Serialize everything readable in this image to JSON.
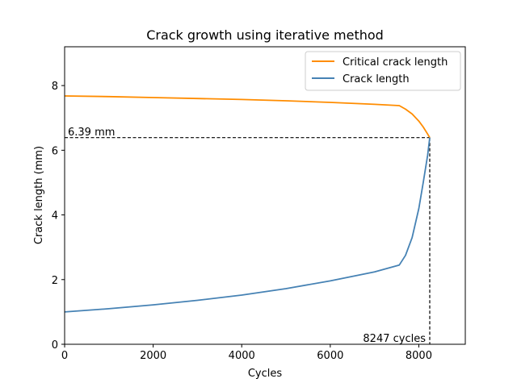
{
  "chart_data": {
    "type": "line",
    "title": "Crack growth using iterative method",
    "xlabel": "Cycles",
    "ylabel": "Crack length (mm)",
    "xlim": [
      0,
      9050
    ],
    "ylim": [
      0,
      9.2
    ],
    "xticks": [
      0,
      2000,
      4000,
      6000,
      8000
    ],
    "yticks": [
      0,
      2,
      4,
      6,
      8
    ],
    "grid": false,
    "legend_position": "top-right",
    "series": [
      {
        "name": "Critical crack length",
        "color": "#ff8c00",
        "x": [
          0,
          1000,
          2000,
          3000,
          4000,
          5000,
          6000,
          7000,
          7560,
          7700,
          7850,
          8000,
          8100,
          8200,
          8247
        ],
        "y": [
          7.68,
          7.66,
          7.63,
          7.6,
          7.57,
          7.53,
          7.48,
          7.42,
          7.38,
          7.27,
          7.12,
          6.9,
          6.72,
          6.5,
          6.39
        ]
      },
      {
        "name": "Crack length",
        "color": "#4682b4",
        "x": [
          0,
          1000,
          2000,
          3000,
          4000,
          5000,
          6000,
          7000,
          7560,
          7700,
          7850,
          8000,
          8100,
          8200,
          8247
        ],
        "y": [
          1.0,
          1.1,
          1.22,
          1.36,
          1.52,
          1.72,
          1.96,
          2.24,
          2.45,
          2.75,
          3.3,
          4.2,
          5.0,
          5.85,
          6.39
        ]
      }
    ],
    "annotations": {
      "y_marker": {
        "value": 6.39,
        "label": "6.39 mm"
      },
      "x_marker": {
        "value": 8247,
        "label": "8247 cycles"
      }
    }
  }
}
